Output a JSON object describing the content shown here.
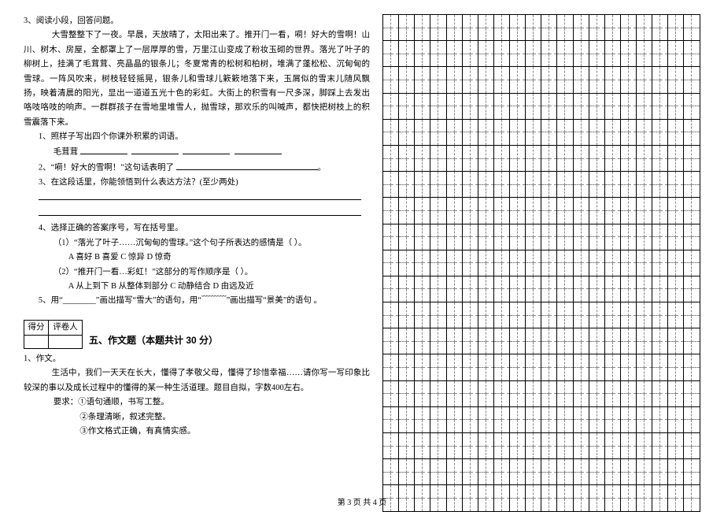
{
  "reading": {
    "number": "3、阅读小段，回答问题。",
    "passage": "大雪整整下了一夜。早晨，天放晴了，太阳出来了。推开门一看，嗬！好大的雪啊！山川、树木、房屋，全都罩上了一层厚厚的雪，万里江山变成了粉妆玉砌的世界。落光了叶子的柳树上，挂满了毛茸茸、亮晶晶的银条儿；冬夏常青的松树和柏树，堆满了蓬松松、沉甸甸的雪球。一阵风吹来，树枝轻轻摇晃，银条儿和雪球儿簌簌地落下来，玉屑似的雪末儿随风飘扬，映着清晨的阳光，显出一道道五光十色的彩虹。大街上的积雪有一尺多深，脚踩上去发出咯吱咯吱的响声。一群群孩子在雪地里堆雪人，抛雪球，那欢乐的叫喊声，都快把树枝上的积雪震落下来。",
    "q1": "1、照样子写出四个你课外积累的词语。",
    "q1_sample": "毛茸茸",
    "q2": "2、“嗬！好大的雪啊！”这句话表明了",
    "q3": "3、在这段话里，你能领悟到什么表达方法？(至少两处)",
    "q4_lead": "4、选择正确的答案序号，写在括号里。",
    "q4a": "（1）“落光了叶子……沉甸甸的雪球。”这个句子所表达的感情是（        ）。",
    "q4a_opts": "A  喜好      B  喜爱         C  惊异         D  惊奇",
    "q4b": "（2）“推开门一看…彩虹！”这部分的写作顺序是（         ）。",
    "q4b_opts": "A  从上到下    B  从整体到部分    C  动静结合    D  由远及近",
    "q5": "5、用“________”画出描写“雪大”的语句，用“﹋﹋﹋”画出描写“景美”的语句 。"
  },
  "section5": {
    "score_label": "得分",
    "reviewer_label": "评卷人",
    "title": "五、作文题（本题共计 30 分）",
    "q_no": "1、作文。",
    "prompt": "生活中，我们一天天在长大，懂得了孝敬父母，懂得了珍惜幸福……请你写一写印象比较深的事以及成长过程中的懂得的某一种生活道理。题目自拟，字数400左右。",
    "req_label": "要求：",
    "req1": "①语句通顺，书写工整。",
    "req2": "②条理清晰，叙述完整。",
    "req3": "③作文格式正确，有真情实感。"
  },
  "grid": {
    "cols": 20,
    "rows_visible": 38
  },
  "footer": "第 3 页  共 4 页"
}
